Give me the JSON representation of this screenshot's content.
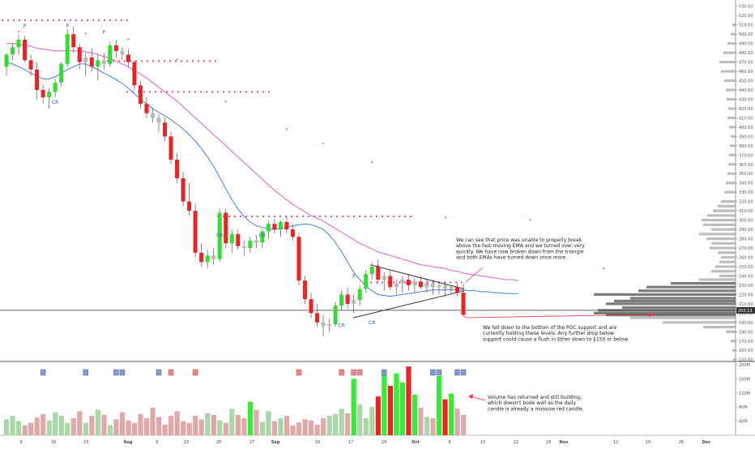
{
  "chart_data": {
    "type": "candlestick",
    "price_axis": {
      "ticks": [
        "530.00",
        "520.00",
        "510.00",
        "500.00",
        "490.00",
        "480.00",
        "470.00",
        "460.00",
        "450.00",
        "440.00",
        "430.00",
        "420.00",
        "410.00",
        "400.00",
        "390.00",
        "380.00",
        "370.00",
        "360.00",
        "350.00",
        "340.00",
        "330.00",
        "320.00",
        "310.00",
        "300.00",
        "290.00",
        "280.00",
        "270.00",
        "260.00",
        "250.00",
        "240.00",
        "230.00",
        "220.00",
        "210.00",
        "200.00",
        "190.00",
        "180.00",
        "170.00",
        "160.00",
        "150.00"
      ],
      "ylim": [
        148,
        535
      ],
      "current_price": 203,
      "current_price_label": "203.13"
    },
    "volume_axis": {
      "ticks": [
        "200M",
        "160M",
        "120M",
        "80M",
        "40M"
      ],
      "ylim": [
        0,
        200
      ]
    },
    "time_axis": {
      "labels": [
        "9",
        "16",
        "23",
        "Aug",
        "6",
        "13",
        "20",
        "27",
        "Sep",
        "10",
        "17",
        "24",
        "Oct",
        "8",
        "15",
        "22",
        "29",
        "Nov",
        "12",
        "19",
        "26",
        "Dec"
      ],
      "bold_labels": [
        "Aug",
        "Sep",
        "Oct",
        "Nov",
        "Dec"
      ]
    },
    "series": [
      {
        "name": "EMA fast",
        "color": "#4a7fd4",
        "values": [
          470,
          468,
          465,
          462,
          458,
          455,
          452,
          452,
          454,
          458,
          462,
          465,
          468,
          468,
          465,
          462,
          458,
          455,
          451,
          447,
          442,
          436,
          430,
          425,
          420,
          416,
          412,
          408,
          403,
          398,
          392,
          385,
          377,
          368,
          358,
          346,
          334,
          322,
          312,
          304,
          298,
          294,
          292,
          291,
          290,
          291,
          292,
          294,
          295,
          296,
          295,
          293,
          290,
          284,
          276,
          266,
          255,
          244,
          236,
          229,
          224,
          220,
          219,
          218,
          219,
          220,
          221,
          222,
          223,
          224,
          225,
          225,
          225,
          225,
          225,
          225,
          224,
          224,
          223,
          223,
          222,
          222,
          221,
          221,
          221
        ]
      },
      {
        "name": "EMA slow",
        "color": "#e060c8",
        "values": [
          490,
          490,
          489,
          488,
          487,
          485,
          484,
          483,
          482,
          482,
          482,
          482,
          482,
          481,
          480,
          478,
          476,
          474,
          471,
          468,
          465,
          461,
          457,
          453,
          448,
          443,
          438,
          433,
          428,
          422,
          416,
          410,
          404,
          398,
          392,
          386,
          380,
          374,
          368,
          362,
          356,
          350,
          344,
          338,
          332,
          327,
          322,
          317,
          313,
          309,
          305,
          302,
          299,
          295,
          291,
          287,
          283,
          279,
          275,
          272,
          269,
          266,
          264,
          262,
          260,
          258,
          256,
          254,
          252,
          251,
          250,
          249,
          248,
          246,
          245,
          243,
          242,
          241,
          240,
          239,
          238,
          237,
          236,
          236,
          235
        ]
      },
      {
        "name": "Volume",
        "values": [
          45,
          55,
          40,
          28,
          35,
          50,
          60,
          42,
          65,
          55,
          35,
          48,
          68,
          35,
          55,
          72,
          58,
          28,
          45,
          65,
          42,
          35,
          60,
          48,
          78,
          52,
          30,
          55,
          68,
          40,
          35,
          55,
          45,
          62,
          58,
          42,
          35,
          75,
          58,
          48,
          95,
          72,
          38,
          68,
          40,
          48,
          55,
          28,
          36,
          45,
          42,
          30,
          48,
          55,
          60,
          75,
          62,
          160,
          88,
          48,
          80,
          110,
          172,
          140,
          175,
          150,
          195,
          115,
          78,
          52,
          48,
          168,
          102,
          118,
          75,
          58,
          52,
          65,
          42,
          38,
          55,
          35,
          48,
          32,
          28,
          98
        ]
      }
    ],
    "candles_ohlc": [
      [
        465,
        480,
        455,
        478
      ],
      [
        478,
        490,
        472,
        486
      ],
      [
        486,
        500,
        478,
        494
      ],
      [
        494,
        498,
        470,
        472
      ],
      [
        472,
        478,
        455,
        462
      ],
      [
        462,
        470,
        430,
        440
      ],
      [
        440,
        446,
        425,
        432
      ],
      [
        432,
        442,
        420,
        438
      ],
      [
        438,
        452,
        432,
        448
      ],
      [
        448,
        470,
        444,
        468
      ],
      [
        468,
        505,
        465,
        500
      ],
      [
        500,
        508,
        480,
        486
      ],
      [
        486,
        490,
        462,
        470
      ],
      [
        470,
        480,
        455,
        475
      ],
      [
        475,
        485,
        460,
        465
      ],
      [
        465,
        478,
        450,
        472
      ],
      [
        472,
        480,
        462,
        468
      ],
      [
        468,
        492,
        465,
        488
      ],
      [
        488,
        494,
        475,
        482
      ],
      [
        482,
        486,
        472,
        478
      ],
      [
        478,
        484,
        465,
        470
      ],
      [
        470,
        472,
        440,
        445
      ],
      [
        445,
        450,
        420,
        425
      ],
      [
        425,
        432,
        410,
        415
      ],
      [
        415,
        420,
        405,
        410
      ],
      [
        410,
        414,
        395,
        405
      ],
      [
        405,
        410,
        385,
        390
      ],
      [
        390,
        395,
        360,
        365
      ],
      [
        365,
        372,
        340,
        345
      ],
      [
        345,
        352,
        315,
        320
      ],
      [
        320,
        340,
        305,
        310
      ],
      [
        310,
        318,
        260,
        265
      ],
      [
        265,
        275,
        250,
        255
      ],
      [
        255,
        268,
        248,
        262
      ],
      [
        262,
        270,
        252,
        258
      ],
      [
        258,
        312,
        255,
        308
      ],
      [
        308,
        312,
        270,
        275
      ],
      [
        275,
        290,
        265,
        285
      ],
      [
        285,
        290,
        268,
        272
      ],
      [
        272,
        278,
        262,
        270
      ],
      [
        270,
        282,
        265,
        278
      ],
      [
        278,
        284,
        270,
        276
      ],
      [
        276,
        290,
        270,
        288
      ],
      [
        288,
        300,
        280,
        296
      ],
      [
        296,
        302,
        286,
        290
      ],
      [
        290,
        300,
        282,
        298
      ],
      [
        298,
        304,
        286,
        290
      ],
      [
        290,
        295,
        278,
        282
      ],
      [
        282,
        286,
        230,
        235
      ],
      [
        235,
        240,
        210,
        215
      ],
      [
        215,
        222,
        195,
        200
      ],
      [
        200,
        210,
        185,
        190
      ],
      [
        190,
        198,
        175,
        186
      ],
      [
        186,
        194,
        180,
        188
      ],
      [
        188,
        212,
        185,
        208
      ],
      [
        208,
        224,
        203,
        220
      ],
      [
        220,
        228,
        205,
        210
      ],
      [
        210,
        220,
        200,
        214
      ],
      [
        214,
        230,
        208,
        226
      ],
      [
        226,
        246,
        222,
        242
      ],
      [
        242,
        254,
        236,
        250
      ],
      [
        250,
        258,
        232,
        236
      ],
      [
        236,
        244,
        224,
        240
      ],
      [
        240,
        246,
        225,
        228
      ],
      [
        228,
        236,
        220,
        232
      ],
      [
        232,
        240,
        222,
        236
      ],
      [
        236,
        242,
        224,
        230
      ],
      [
        230,
        238,
        222,
        234
      ],
      [
        234,
        240,
        226,
        228
      ],
      [
        228,
        236,
        222,
        232
      ],
      [
        232,
        236,
        220,
        228
      ],
      [
        228,
        234,
        220,
        230
      ],
      [
        230,
        234,
        218,
        226
      ],
      [
        226,
        230,
        220,
        228
      ],
      [
        228,
        232,
        218,
        222
      ],
      [
        222,
        232,
        196,
        198
      ]
    ],
    "annotations": [
      {
        "id": "a1",
        "text_lines": [
          "We can see that price was unable to properly break",
          "above the fast-moving EMA and we turned over very",
          "quickly. We have now broken down from the triangle",
          "and both EMAs have turned down once more."
        ]
      },
      {
        "id": "a2",
        "text_lines": [
          "We fell down to the bottom of the POC support and are",
          "currently holding these levels. Any further drop below",
          "support could cause a flush in Ether down to $150 or below."
        ]
      },
      {
        "id": "a3",
        "text_lines": [
          "Volume has returned and still building,",
          "which doesn't bode well as the daily",
          "candle is already a massive red candle."
        ]
      }
    ],
    "pattern_labels": [
      "P",
      "P",
      "P",
      "P",
      "CR",
      "CR",
      "CR",
      "CR",
      "CR",
      "X"
    ],
    "colors": {
      "up": "#33dd33",
      "down": "#ee2222",
      "neutral": "#b8b8b8",
      "ema_fast": "#4a7fd4",
      "ema_slow": "#e060c8",
      "dotted_resistance": "#f0508a",
      "annotation_arrow": "#ee3344",
      "volume_profile": "#909090",
      "poc": "#555555"
    }
  }
}
